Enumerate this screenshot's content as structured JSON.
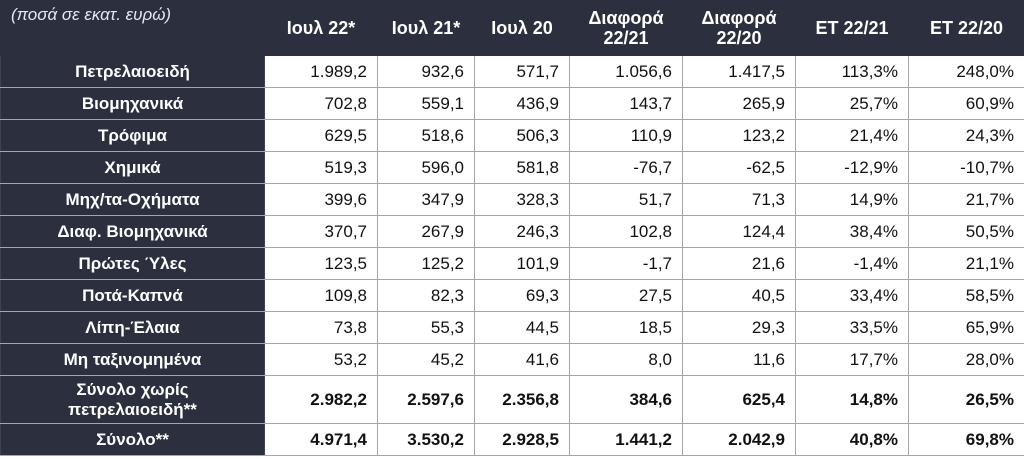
{
  "table": {
    "caption": "(ποσά σε εκατ. ευρώ)",
    "columns": [
      "Ιουλ 22*",
      "Ιουλ 21*",
      "Ιουλ 20",
      "Διαφορά 22/21",
      "Διαφορά 22/20",
      "ΕΤ 22/21",
      "ΕΤ 22/20"
    ],
    "rows": [
      {
        "label": "Πετρελαιοειδή",
        "values": [
          "1.989,2",
          "932,6",
          "571,7",
          "1.056,6",
          "1.417,5",
          "113,3%",
          "248,0%"
        ]
      },
      {
        "label": "Βιομηχανικά",
        "values": [
          "702,8",
          "559,1",
          "436,9",
          "143,7",
          "265,9",
          "25,7%",
          "60,9%"
        ]
      },
      {
        "label": "Τρόφιμα",
        "values": [
          "629,5",
          "518,6",
          "506,3",
          "110,9",
          "123,2",
          "21,4%",
          "24,3%"
        ]
      },
      {
        "label": "Χημικά",
        "values": [
          "519,3",
          "596,0",
          "581,8",
          "-76,7",
          "-62,5",
          "-12,9%",
          "-10,7%"
        ]
      },
      {
        "label": "Μηχ/τα-Οχήματα",
        "values": [
          "399,6",
          "347,9",
          "328,3",
          "51,7",
          "71,3",
          "14,9%",
          "21,7%"
        ]
      },
      {
        "label": "Διαφ. Βιομηχανικά",
        "values": [
          "370,7",
          "267,9",
          "246,3",
          "102,8",
          "124,4",
          "38,4%",
          "50,5%"
        ]
      },
      {
        "label": "Πρώτες Ύλες",
        "values": [
          "123,5",
          "125,2",
          "101,9",
          "-1,7",
          "21,6",
          "-1,4%",
          "21,1%"
        ]
      },
      {
        "label": "Ποτά-Καπνά",
        "values": [
          "109,8",
          "82,3",
          "69,3",
          "27,5",
          "40,5",
          "33,4%",
          "58,5%"
        ]
      },
      {
        "label": "Λίπη-Έλαια",
        "values": [
          "73,8",
          "55,3",
          "44,5",
          "18,5",
          "29,3",
          "33,5%",
          "65,9%"
        ]
      },
      {
        "label": "Μη ταξινομημένα",
        "values": [
          "53,2",
          "45,2",
          "41,6",
          "8,0",
          "11,6",
          "17,7%",
          "28,0%"
        ]
      }
    ],
    "totals": [
      {
        "label": "Σύνολο χωρίς πετρελαιοειδή**",
        "values": [
          "2.982,2",
          "2.597,6",
          "2.356,8",
          "384,6",
          "625,4",
          "14,8%",
          "26,5%"
        ]
      },
      {
        "label": "Σύνολο**",
        "values": [
          "4.971,4",
          "3.530,2",
          "2.928,5",
          "1.441,2",
          "2.042,9",
          "40,8%",
          "69,8%"
        ]
      }
    ]
  }
}
